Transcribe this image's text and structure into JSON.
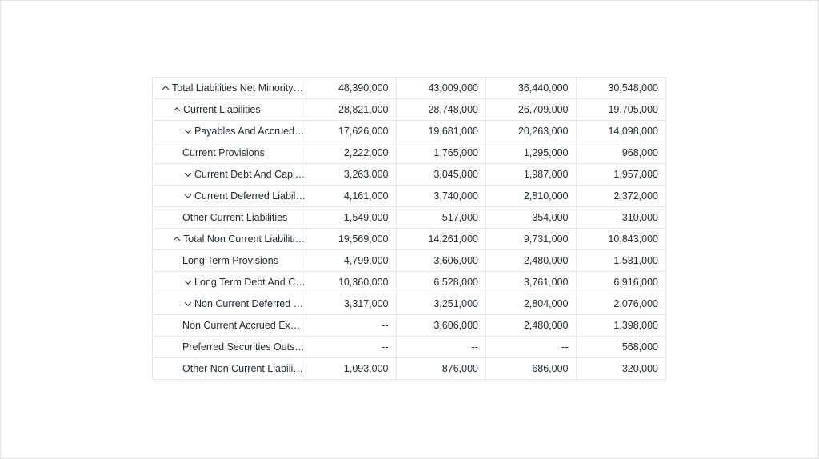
{
  "page": {
    "background_color": "#ffffff",
    "table_border_color": "#e4e7eb",
    "text_color": "#232a31"
  },
  "table": {
    "rows": [
      {
        "label": "Total Liabilities Net Minority I...",
        "arrow": "up",
        "indent": 0,
        "values": [
          "48,390,000",
          "43,009,000",
          "36,440,000",
          "30,548,000"
        ]
      },
      {
        "label": "Current Liabilities",
        "arrow": "up",
        "indent": 1,
        "values": [
          "28,821,000",
          "28,748,000",
          "26,709,000",
          "19,705,000"
        ]
      },
      {
        "label": "Payables And Accrued E...",
        "arrow": "down",
        "indent": 2,
        "values": [
          "17,626,000",
          "19,681,000",
          "20,263,000",
          "14,098,000"
        ]
      },
      {
        "label": "Current Provisions",
        "arrow": "none",
        "indent": 2,
        "values": [
          "2,222,000",
          "1,765,000",
          "1,295,000",
          "968,000"
        ]
      },
      {
        "label": "Current Debt And Capita...",
        "arrow": "down",
        "indent": 2,
        "values": [
          "3,263,000",
          "3,045,000",
          "1,987,000",
          "1,957,000"
        ]
      },
      {
        "label": "Current Deferred Liabiliti...",
        "arrow": "down",
        "indent": 2,
        "values": [
          "4,161,000",
          "3,740,000",
          "2,810,000",
          "2,372,000"
        ]
      },
      {
        "label": "Other Current Liabilities",
        "arrow": "none",
        "indent": 2,
        "values": [
          "1,549,000",
          "517,000",
          "354,000",
          "310,000"
        ]
      },
      {
        "label": "Total Non Current Liabilitie...",
        "arrow": "up",
        "indent": 1,
        "values": [
          "19,569,000",
          "14,261,000",
          "9,731,000",
          "10,843,000"
        ]
      },
      {
        "label": "Long Term Provisions",
        "arrow": "none",
        "indent": 2,
        "values": [
          "4,799,000",
          "3,606,000",
          "2,480,000",
          "1,531,000"
        ]
      },
      {
        "label": "Long Term Debt And Cap...",
        "arrow": "down",
        "indent": 2,
        "values": [
          "10,360,000",
          "6,528,000",
          "3,761,000",
          "6,916,000"
        ]
      },
      {
        "label": "Non Current Deferred Lia...",
        "arrow": "down",
        "indent": 2,
        "values": [
          "3,317,000",
          "3,251,000",
          "2,804,000",
          "2,076,000"
        ]
      },
      {
        "label": "Non Current Accrued Expen...",
        "arrow": "none",
        "indent": 2,
        "values": [
          "--",
          "3,606,000",
          "2,480,000",
          "1,398,000"
        ]
      },
      {
        "label": "Preferred Securities Outsid...",
        "arrow": "none",
        "indent": 2,
        "values": [
          "--",
          "--",
          "--",
          "568,000"
        ]
      },
      {
        "label": "Other Non Current Liabilities",
        "arrow": "none",
        "indent": 2,
        "values": [
          "1,093,000",
          "876,000",
          "686,000",
          "320,000"
        ]
      }
    ]
  }
}
